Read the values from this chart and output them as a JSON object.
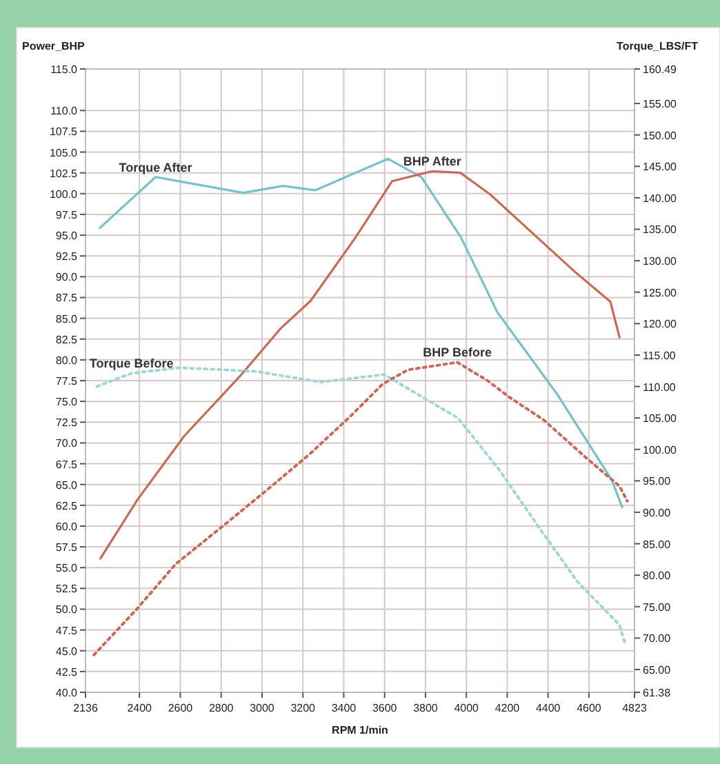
{
  "chart_data": {
    "type": "line",
    "xlabel": "RPM  1/min",
    "ylabel": "Power_BHP",
    "y2label": "Torque_LBS/FT",
    "xlim": [
      2136,
      4823
    ],
    "xticks": [
      2136,
      2400,
      2600,
      2800,
      3000,
      3200,
      3400,
      3600,
      3800,
      4000,
      4200,
      4400,
      4600,
      4823
    ],
    "ylim": [
      40,
      115
    ],
    "yticks": [
      {
        "value": 40,
        "label": "40.0"
      },
      {
        "value": 42.5,
        "label": "42.5"
      },
      {
        "value": 45,
        "label": "45.0"
      },
      {
        "value": 47.5,
        "label": "47.5"
      },
      {
        "value": 50,
        "label": "50.0"
      },
      {
        "value": 52.5,
        "label": "52.5"
      },
      {
        "value": 55,
        "label": "55.0"
      },
      {
        "value": 57.5,
        "label": "57.5"
      },
      {
        "value": 60,
        "label": "60.0"
      },
      {
        "value": 62.5,
        "label": "62.5"
      },
      {
        "value": 65,
        "label": "65.0"
      },
      {
        "value": 67.5,
        "label": "67.5"
      },
      {
        "value": 70,
        "label": "70.0"
      },
      {
        "value": 72.5,
        "label": "72.5"
      },
      {
        "value": 75,
        "label": "75.0"
      },
      {
        "value": 77.5,
        "label": "77.5"
      },
      {
        "value": 80,
        "label": "80.0"
      },
      {
        "value": 82.5,
        "label": "82.5"
      },
      {
        "value": 85,
        "label": "85.0"
      },
      {
        "value": 87.5,
        "label": "87.5"
      },
      {
        "value": 90,
        "label": "90.0"
      },
      {
        "value": 92.5,
        "label": "92.5"
      },
      {
        "value": 95,
        "label": "95.0"
      },
      {
        "value": 97.5,
        "label": "97.5"
      },
      {
        "value": 100,
        "label": "100.0"
      },
      {
        "value": 102.5,
        "label": "102.5"
      },
      {
        "value": 105,
        "label": "105.0"
      },
      {
        "value": 107.5,
        "label": "107.5"
      },
      {
        "value": 110,
        "label": "110.0"
      },
      {
        "value": 115,
        "label": "115.0"
      }
    ],
    "y2lim": [
      61.38,
      160.49
    ],
    "y2ticks": [
      61.38,
      {
        "value": 65,
        "label": "65.00"
      },
      {
        "value": 70,
        "label": "70.00"
      },
      {
        "value": 75,
        "label": "75.00"
      },
      {
        "value": 80,
        "label": "80.00"
      },
      {
        "value": 85,
        "label": "85.00"
      },
      {
        "value": 90,
        "label": "90.00"
      },
      {
        "value": 95,
        "label": "95.00"
      },
      {
        "value": 100,
        "label": "100.00"
      },
      {
        "value": 105,
        "label": "105.00"
      },
      {
        "value": 110,
        "label": "110.00"
      },
      {
        "value": 115,
        "label": "115.00"
      },
      {
        "value": 120,
        "label": "120.00"
      },
      {
        "value": 125,
        "label": "125.00"
      },
      {
        "value": 130,
        "label": "130.00"
      },
      {
        "value": 135,
        "label": "135.00"
      },
      {
        "value": 140,
        "label": "140.00"
      },
      {
        "value": 145,
        "label": "145.00"
      },
      {
        "value": 150,
        "label": "150.00"
      },
      {
        "value": 155,
        "label": "155.00"
      },
      160.49
    ],
    "grid": true,
    "series": [
      {
        "name": "Torque After",
        "color": "#72c4c8",
        "axis": "y2",
        "line_style": "solid",
        "x": [
          2206,
          2479,
          2908,
          3102,
          3260,
          3431,
          3617,
          3780,
          3974,
          4152,
          4444,
          4712,
          4763
        ],
        "values": [
          135.2,
          143.3,
          140.8,
          141.9,
          141.2,
          143.6,
          146.2,
          143.3,
          133.7,
          121.8,
          108.8,
          95.1,
          90.8
        ]
      },
      {
        "name": "BHP After",
        "color": "#c86a55",
        "line_style": "solid",
        "x": [
          2209,
          2391,
          2618,
          2898,
          3092,
          3238,
          3457,
          3637,
          3833,
          3971,
          4117,
          4326,
          4531,
          4705,
          4750
        ],
        "values": [
          56.1,
          63.2,
          70.8,
          78.2,
          83.8,
          87.1,
          94.7,
          101.5,
          102.7,
          102.5,
          99.9,
          95.2,
          90.6,
          87.0,
          82.7
        ]
      },
      {
        "name": "Torque Before",
        "color": "#9fd6d8",
        "axis": "y2",
        "line_style": "dotted",
        "x": [
          2191,
          2361,
          2597,
          2971,
          3285,
          3598,
          3959,
          4160,
          4351,
          4543,
          4749,
          4778
        ],
        "values": [
          110.0,
          112.1,
          113.0,
          112.4,
          110.7,
          111.9,
          105.0,
          96.8,
          87.8,
          79.0,
          72.1,
          69.0
        ]
      },
      {
        "name": "BHP Before",
        "color": "#c86a55",
        "line_style": "dotted",
        "x": [
          2177,
          2383,
          2576,
          2813,
          3027,
          3235,
          3428,
          3591,
          3714,
          3956,
          4104,
          4211,
          4377,
          4587,
          4750,
          4788
        ],
        "values": [
          44.5,
          49.9,
          55.4,
          60.1,
          64.4,
          68.7,
          73.1,
          77.1,
          78.8,
          79.7,
          77.5,
          75.5,
          72.8,
          68.2,
          64.8,
          63.0
        ]
      }
    ]
  }
}
